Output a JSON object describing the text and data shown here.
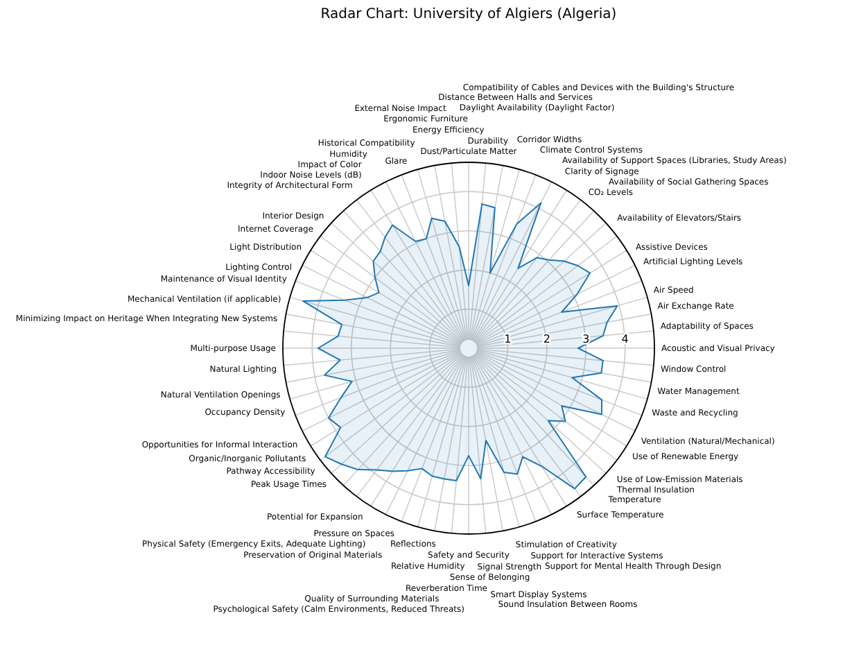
{
  "chart_data": {
    "type": "radar",
    "title": "Radar Chart: University of Algiers (Algeria)",
    "categories": [
      "Dust/Particulate Matter",
      "Durability",
      "Distance Between Halls and Services",
      "Daylight Availability (Daylight Factor)",
      "Corridor Widths",
      "Compatibility of Cables and Devices with the Building's Structure",
      "Climate Control Systems",
      "Clarity of Signage",
      "CO₂ Levels",
      "Availability of Support Spaces (Libraries, Study Areas)",
      "Availability of Social Gathering Spaces",
      "Availability of Elevators/Stairs",
      "Assistive Devices",
      "Artificial Lighting Levels",
      "Air Speed",
      "Air Exchange Rate",
      "Adaptability of Spaces",
      "Acoustic and Visual Privacy",
      "Window Control",
      "Water Management",
      "Waste and Recycling",
      "Ventilation (Natural/Mechanical)",
      "Use of Renewable Energy",
      "Use of Low-Emission Materials",
      "Thermal Insulation",
      "Temperature",
      "Surface Temperature",
      "Support for Mental Health Through Design",
      "Support for Interactive Systems",
      "Stimulation of Creativity",
      "Sound Insulation Between Rooms",
      "Smart Display Systems",
      "Signal Strength",
      "Sense of Belonging",
      "Safety and Security",
      "Reverberation Time",
      "Relative Humidity",
      "Reflections",
      "Quality of Surrounding Materials",
      "Psychological Safety (Calm Environments, Reduced Threats)",
      "Pressure on Spaces",
      "Preservation of Original Materials",
      "Potential for Expansion",
      "Physical Safety (Emergency Exits, Adequate Lighting)",
      "Peak Usage Times",
      "Pathway Accessibility",
      "Organic/Inorganic Pollutants",
      "Opportunities for Informal Interaction",
      "Occupancy Density",
      "Natural Ventilation Openings",
      "Natural Lighting",
      "Multi-purpose Usage",
      "Minimizing Impact on Heritage When Integrating New Systems",
      "Mechanical Ventilation (if applicable)",
      "Maintenance of Visual Identity",
      "Lighting Control",
      "Light Distribution",
      "Internet Coverage",
      "Interior Design",
      "Integrity of Architectural Form",
      "Indoor Noise Levels (dB)",
      "Impact of Color",
      "Humidity",
      "Historical Compatibility",
      "Glare",
      "External Noise Impact",
      "Ergonomic Furniture",
      "Energy Efficiency"
    ],
    "series": [
      {
        "color": "#1f77b4",
        "values": [
          1.6,
          3.7,
          3.65,
          2.0,
          3.4,
          4.15,
          2.4,
          2.9,
          3.05,
          3.3,
          3.5,
          3.65,
          3.1,
          2.55,
          3.95,
          3.6,
          3.45,
          2.8,
          3.45,
          3.45,
          2.75,
          3.65,
          3.8,
          2.8,
          3.1,
          2.75,
          4.45,
          4.5,
          3.55,
          3.1,
          3.45,
          3.3,
          2.4,
          3.35,
          2.75,
          3.4,
          3.4,
          3.4,
          3.3,
          3.5,
          3.7,
          3.9,
          4.2,
          4.4,
          4.6,
          3.85,
          4.0,
          3.5,
          3.1,
          3.75,
          3.3,
          3.85,
          3.35,
          3.3,
          4.4,
          3.4,
          2.9,
          2.7,
          3.0,
          3.3,
          3.35,
          3.55,
          3.7,
          3.05,
          3.0,
          3.45,
          3.3,
          2.6
        ]
      }
    ],
    "ylim": [
      0,
      4.75
    ],
    "yticks": [
      1,
      2,
      3,
      4
    ],
    "grid": true
  }
}
